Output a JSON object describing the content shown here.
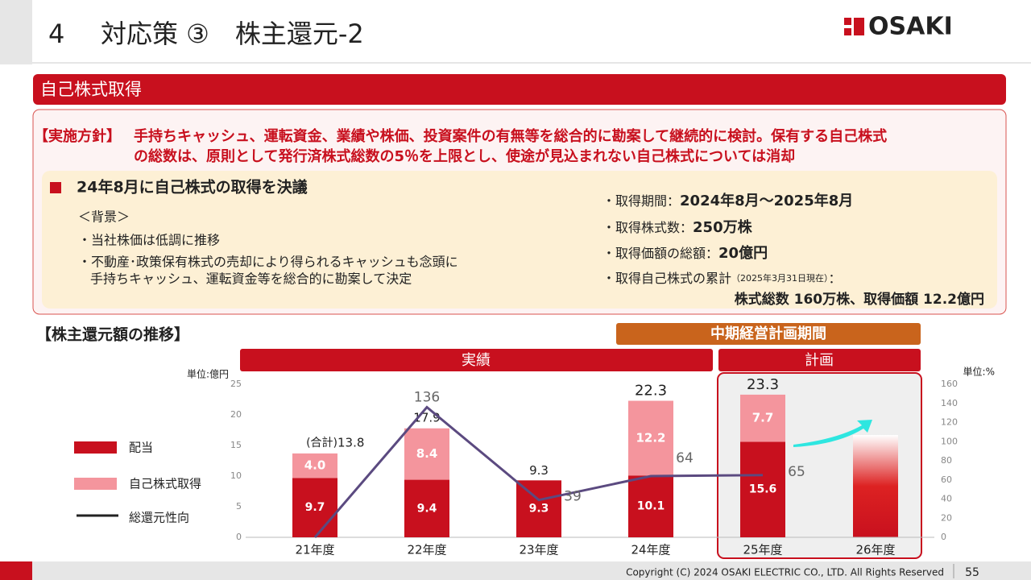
{
  "header": {
    "number": "4",
    "title": "対応策 ③　株主還元-2",
    "logo": "OSAKI"
  },
  "section": "自己株式取得",
  "policy": {
    "label": "【実施方針】",
    "lines": [
      "手持ちキャッシュ、運転資金、業績や株価、投資案件の有無等を総合的に勘案して継続的に検討。保有する自己株式",
      "の総数は、原則として発行済株式総数の5％を上限とし、使途が見込まれない自己株式については消却"
    ]
  },
  "resolution": {
    "heading": "24年8月に自己株式の取得を決議",
    "background": "＜背景＞",
    "bullets": [
      "・当社株価は低調に推移",
      "・不動産･政策保有株式の売却により得られるキャッシュも念頭に",
      "手持ちキャッシュ、運転資金等を総合的に勘案して決定"
    ],
    "details": [
      {
        "label": "・取得期間：",
        "value": "2024年8月～2025年8月"
      },
      {
        "label": "・取得株式数：",
        "value": "250万株"
      },
      {
        "label": "・取得価額の総額：",
        "value": "20億円"
      },
      {
        "label": "・取得自己株式の累計",
        "note": "（2025年3月31日現在）",
        "suffix": "："
      }
    ],
    "cumulative": "株式総数 160万株、取得価額 12.2億円"
  },
  "chart_data": {
    "type": "bar",
    "title": "【株主還元額の推移】",
    "period": "中期経営計画期間",
    "actual": "実績",
    "plan": "計画",
    "y_unit": "単位:億円",
    "y2_unit": "単位:%",
    "categories": [
      "21年度",
      "22年度",
      "23年度",
      "24年度",
      "25年度",
      "26年度"
    ],
    "series": [
      {
        "name": "配当",
        "color": "#c8101e",
        "values": [
          9.7,
          9.4,
          9.3,
          10.1,
          15.6,
          null
        ]
      },
      {
        "name": "自己株式取得",
        "color": "#f4959d",
        "values": [
          4.0,
          8.4,
          null,
          12.2,
          7.7,
          null
        ],
        "value_labels": [
          "4.0",
          "8.4",
          null,
          "12.2",
          "7.7",
          null
        ]
      },
      {
        "name": "総還元性向",
        "color": "#5b4a80",
        "axis": "y2",
        "values": [
          0,
          136,
          39,
          64,
          65,
          null
        ],
        "value_labels": [
          null,
          "136",
          "39",
          "64",
          "65",
          null
        ]
      }
    ],
    "totals": [
      13.8,
      17.9,
      9.3,
      22.3,
      23.3,
      null
    ],
    "total_prefix": "(合計)",
    "ylim": [
      0,
      25
    ],
    "yticks": [
      0,
      5,
      10,
      15,
      20,
      25
    ],
    "y2lim": [
      0,
      160
    ],
    "y2ticks": [
      0,
      20,
      40,
      60,
      80,
      100,
      120,
      140,
      160
    ]
  },
  "footer": {
    "copyright": "Copyright (C) 2024 OSAKI ELECTRIC CO., LTD. All Rights Reserved",
    "page": "55"
  }
}
